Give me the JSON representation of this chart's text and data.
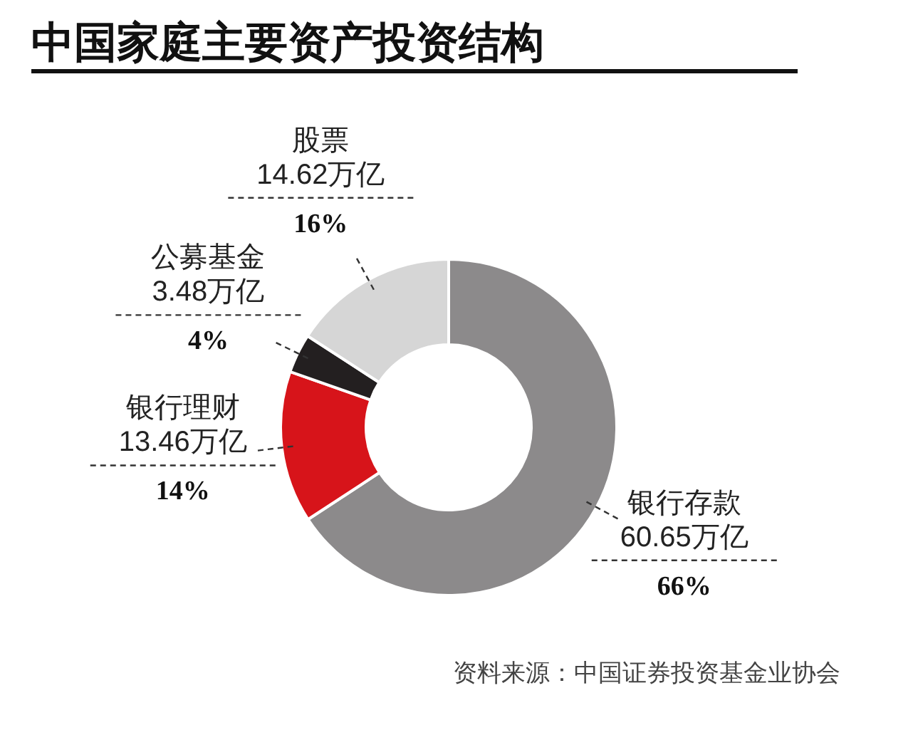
{
  "chart_data": {
    "type": "donut",
    "title": "中国家庭主要资产投资结构",
    "categories": [
      "银行存款",
      "银行理财",
      "公募基金",
      "股票"
    ],
    "values": [
      60.65,
      13.46,
      3.48,
      14.62
    ],
    "colors": [
      "#8c8a8b",
      "#d7141a",
      "#231f20",
      "#d6d6d6"
    ],
    "value_labels": [
      "60.65万亿\n66%",
      "13.46万亿\n14%",
      "3.48万亿\n4%",
      "14.62万亿\n16%"
    ],
    "annotations": [
      "资料来源：中国证券投资基金业协会"
    ]
  }
}
